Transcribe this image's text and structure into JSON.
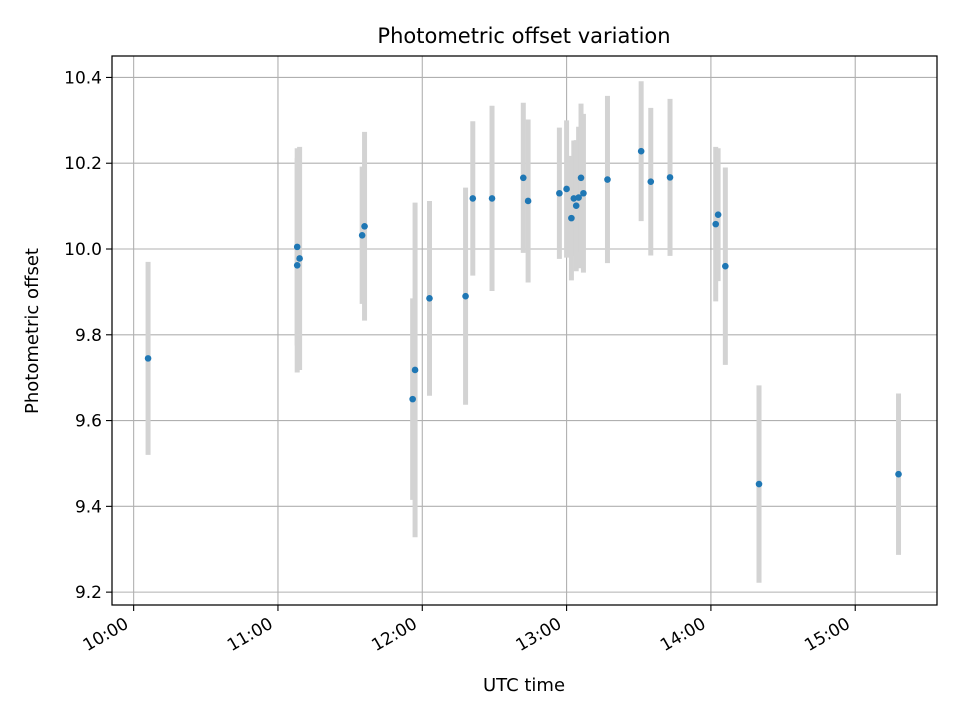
{
  "chart_data": {
    "type": "scatter",
    "title": "Photometric offset variation",
    "xlabel": "UTC time",
    "ylabel": "Photometric offset",
    "x_ticks": [
      "10:00",
      "11:00",
      "12:00",
      "13:00",
      "14:00",
      "15:00"
    ],
    "y_ticks": [
      "9.2",
      "9.4",
      "9.6",
      "9.8",
      "10.0",
      "10.2",
      "10.4"
    ],
    "xlim": [
      "09:51",
      "15:34"
    ],
    "ylim": [
      9.17,
      10.45
    ],
    "grid": true,
    "colors": {
      "point": "#1f77b4",
      "errorbar": "#d3d3d3",
      "grid": "#b0b0b0"
    },
    "points": [
      {
        "x": "10:06",
        "y": 9.745,
        "err": 0.225
      },
      {
        "x": "11:08",
        "y": 10.005,
        "err": 0.23
      },
      {
        "x": "11:08",
        "y": 9.962,
        "err": 0.25
      },
      {
        "x": "11:09",
        "y": 9.978,
        "err": 0.26
      },
      {
        "x": "11:35",
        "y": 10.032,
        "err": 0.16
      },
      {
        "x": "11:36",
        "y": 10.053,
        "err": 0.22
      },
      {
        "x": "11:56",
        "y": 9.65,
        "err": 0.235
      },
      {
        "x": "11:57",
        "y": 9.718,
        "err": 0.39
      },
      {
        "x": "12:03",
        "y": 9.885,
        "err": 0.227
      },
      {
        "x": "12:18",
        "y": 9.89,
        "err": 0.253
      },
      {
        "x": "12:21",
        "y": 10.118,
        "err": 0.18
      },
      {
        "x": "12:29",
        "y": 10.118,
        "err": 0.216
      },
      {
        "x": "12:42",
        "y": 10.166,
        "err": 0.175
      },
      {
        "x": "12:44",
        "y": 10.112,
        "err": 0.19
      },
      {
        "x": "12:57",
        "y": 10.13,
        "err": 0.153
      },
      {
        "x": "13:00",
        "y": 10.14,
        "err": 0.16
      },
      {
        "x": "13:02",
        "y": 10.072,
        "err": 0.145
      },
      {
        "x": "13:03",
        "y": 10.118,
        "err": 0.135
      },
      {
        "x": "13:04",
        "y": 10.101,
        "err": 0.153
      },
      {
        "x": "13:05",
        "y": 10.12,
        "err": 0.165
      },
      {
        "x": "13:06",
        "y": 10.166,
        "err": 0.173
      },
      {
        "x": "13:07",
        "y": 10.13,
        "err": 0.185
      },
      {
        "x": "13:17",
        "y": 10.162,
        "err": 0.195
      },
      {
        "x": "13:31",
        "y": 10.228,
        "err": 0.163
      },
      {
        "x": "13:35",
        "y": 10.157,
        "err": 0.172
      },
      {
        "x": "13:43",
        "y": 10.167,
        "err": 0.183
      },
      {
        "x": "14:02",
        "y": 10.058,
        "err": 0.18
      },
      {
        "x": "14:03",
        "y": 10.08,
        "err": 0.155
      },
      {
        "x": "14:06",
        "y": 9.96,
        "err": 0.23
      },
      {
        "x": "14:20",
        "y": 9.452,
        "err": 0.23
      },
      {
        "x": "15:18",
        "y": 9.475,
        "err": 0.188
      }
    ]
  }
}
